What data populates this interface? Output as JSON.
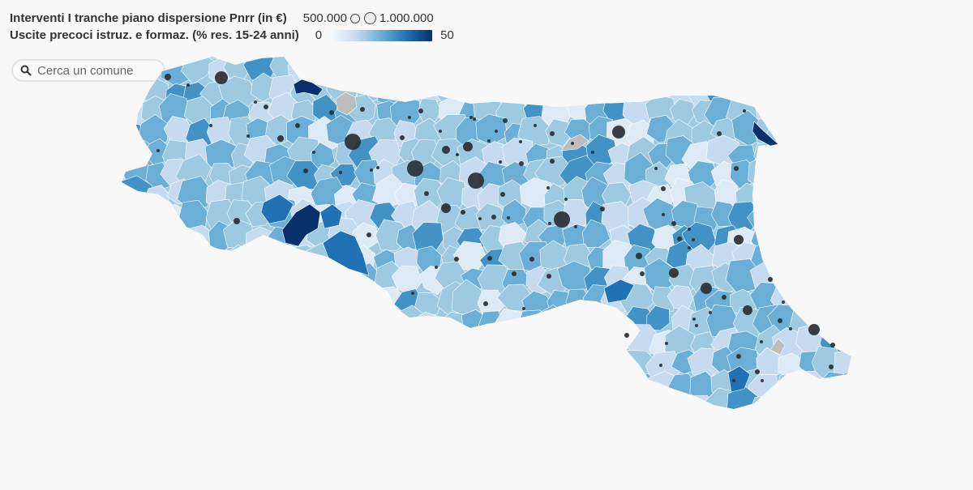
{
  "legend": {
    "size_title": "Interventi I tranche piano dispersione Pnrr (in €)",
    "size_min_label": "500.000",
    "size_max_label": "1.000.000",
    "color_title": "Uscite precoci istruz. e formaz. (% res. 15-24 anni)",
    "color_min_label": "0",
    "color_max_label": "50"
  },
  "search": {
    "placeholder": "Cerca un comune",
    "value": ""
  },
  "colors": {
    "background": "#f8f8f8",
    "scale": [
      "#f7fbff",
      "#c6dbef",
      "#6baed6",
      "#2171b5",
      "#08306b"
    ],
    "no_data": "#bdbdbd",
    "bubble": "#2a2f33"
  }
}
